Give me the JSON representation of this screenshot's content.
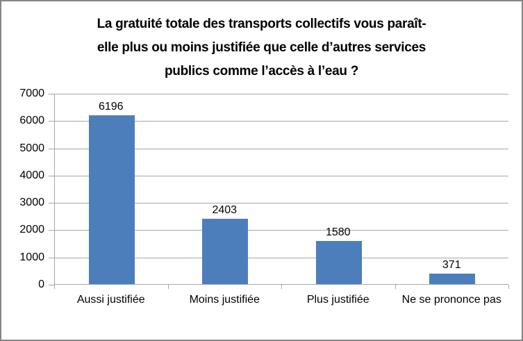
{
  "chart_data": {
    "type": "bar",
    "title": "La gratuité totale des transports collectifs vous paraît-\nelle plus ou moins justifiée que celle d’autres services\npublics comme l’accès à l’eau ?",
    "title_flat": "La gratuité totale des transports collectifs vous paraît-elle plus ou moins justifiée que celle d’autres services publics comme l’accès à l’eau ?",
    "categories": [
      "Aussi justifiée",
      "Moins justifiée",
      "Plus justifiée",
      "Ne se prononce pas"
    ],
    "values": [
      6196,
      2403,
      1580,
      371
    ],
    "data_labels": [
      "6196",
      "2403",
      "1580",
      "371"
    ],
    "xlabel": "",
    "ylabel": "",
    "ylim": [
      0,
      7000
    ],
    "ytick_interval": 1000,
    "yticks": [
      0,
      1000,
      2000,
      3000,
      4000,
      5000,
      6000,
      7000
    ],
    "grid": true,
    "legend": false,
    "colors": {
      "bar": "#4c7ebc",
      "gridline": "#a6a6a6",
      "axis": "#a6a6a6",
      "text": "#000000",
      "figure_border": "#868686",
      "background": "#ffffff"
    }
  }
}
